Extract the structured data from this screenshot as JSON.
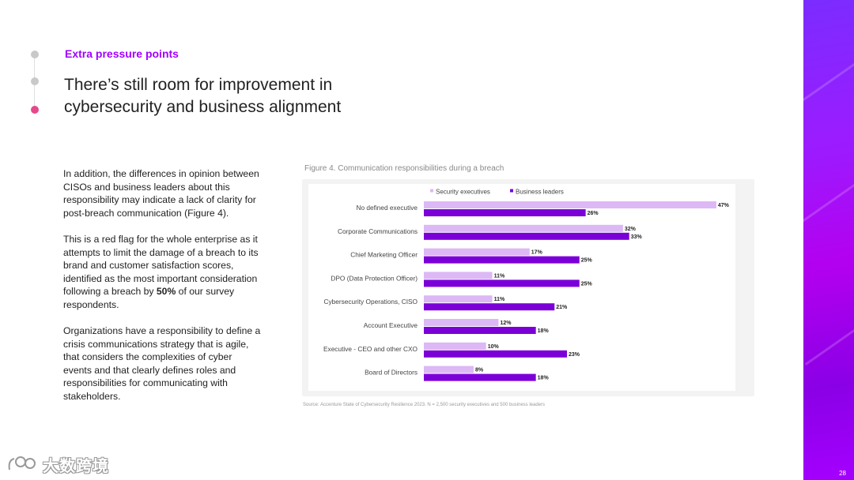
{
  "slide": {
    "eyebrow": "Extra pressure points",
    "headline": "There’s still room for improvement in cybersecurity and business alignment",
    "body": {
      "p1": "In addition, the differences in opinion between CISOs and business leaders about this responsibility may indicate a lack of clarity for post-breach communication (Figure 4).",
      "p2_before": "This is a red flag for the whole enterprise as it attempts to limit the damage of a breach to its brand and customer satisfaction scores, identified as the most important consideration following a breach by ",
      "p2_bold": "50%",
      "p2_after": " of our survey respondents.",
      "p3": "Organizations have a responsibility to define a crisis communications strategy that is agile, that considers the complexities of cyber events and that clearly defines roles and responsibilities for communicating with stakeholders."
    },
    "figure_caption": "Figure 4. Communication responsibilities during a breach",
    "source": "Source: Accenture State of Cybersecurity Resilience  2023. N = 2,500 security executives and 500 business leaders",
    "page_number": "28",
    "watermark_text": "大数跨境"
  },
  "colors": {
    "accent": "#a100ff",
    "security": "#dcb8f5",
    "business": "#7b00d8",
    "active_dot": "#e6488c"
  },
  "chart_data": {
    "type": "bar",
    "orientation": "horizontal",
    "title": "Figure 4. Communication responsibilities during a breach",
    "categories": [
      "No defined executive",
      "Corporate Communications",
      "Chief Marketing Officer",
      "DPO (Data Protection Officer)",
      "Cybersecurity Operations, CISO",
      "Account Executive",
      "Executive - CEO and other CXO",
      "Board of Directors"
    ],
    "series": [
      {
        "name": "Security executives",
        "values": [
          47,
          32,
          17,
          11,
          11,
          12,
          10,
          8
        ]
      },
      {
        "name": "Business leaders",
        "values": [
          26,
          33,
          25,
          25,
          21,
          18,
          23,
          18
        ]
      }
    ],
    "value_suffix": "%",
    "xlim": [
      0,
      50
    ],
    "legend": "top-left",
    "grid": false
  }
}
